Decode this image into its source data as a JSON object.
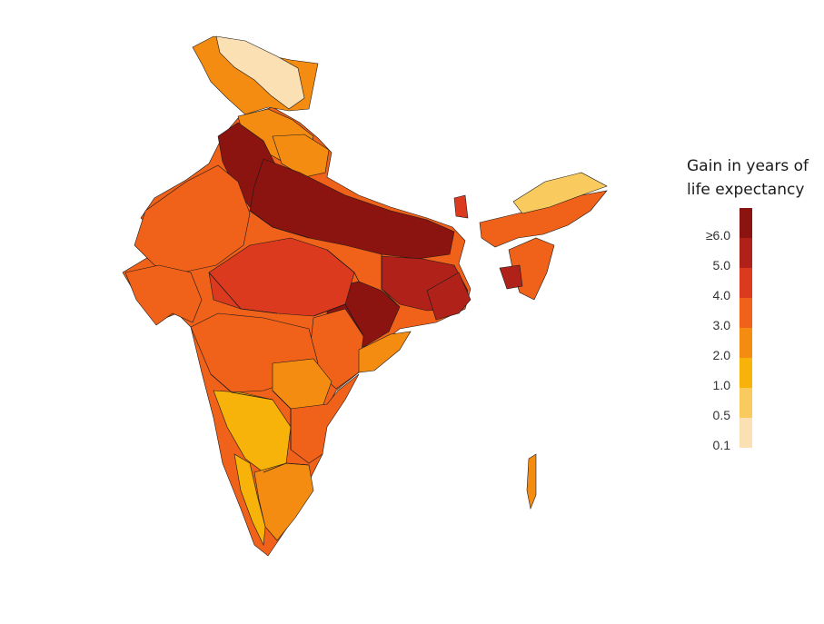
{
  "legend": {
    "title_line1": "Gain in years of",
    "title_line2": "life expectancy",
    "labels": [
      "≥6.0",
      "5.0",
      "4.0",
      "3.0",
      "2.0",
      "1.0",
      "0.5",
      "0.1"
    ],
    "colors": [
      "#8B1410",
      "#B0211A",
      "#DC3A1F",
      "#F0611A",
      "#F58C12",
      "#F7B30A",
      "#F9CB5E",
      "#FBE0B4"
    ]
  },
  "map": {
    "region": "India",
    "border_color": "#1a1a1a"
  }
}
